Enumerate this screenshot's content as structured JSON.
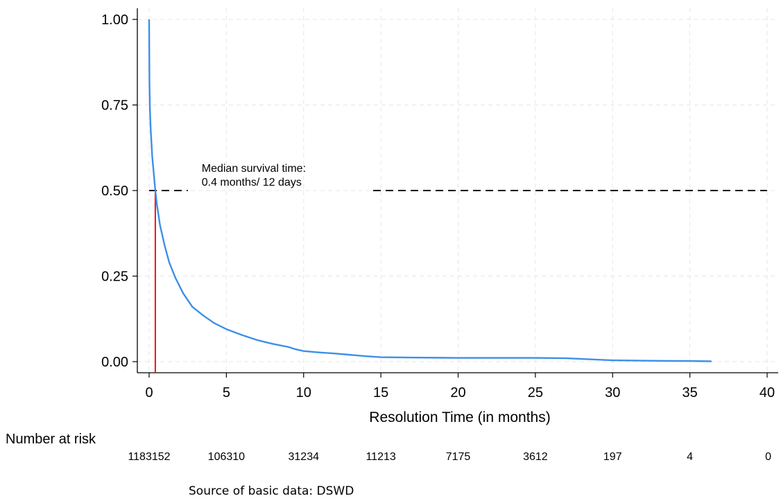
{
  "chart_data": {
    "type": "line",
    "title": "",
    "xlabel": "Resolution Time (in months)",
    "ylabel": "",
    "xlim": [
      0,
      40
    ],
    "ylim": [
      0,
      1
    ],
    "x_ticks": [
      0,
      5,
      10,
      15,
      20,
      25,
      30,
      35,
      40
    ],
    "x_tick_labels": [
      "0",
      "5",
      "10",
      "15",
      "20",
      "25",
      "30",
      "35",
      "40"
    ],
    "y_ticks": [
      0,
      0.25,
      0.5,
      0.75,
      1.0
    ],
    "y_tick_labels": [
      "0.00",
      "0.25",
      "0.50",
      "0.75",
      "1.00"
    ],
    "grid": true,
    "series": [
      {
        "color": "#3d8fe8",
        "x": [
          0,
          0.02,
          0.05,
          0.1,
          0.2,
          0.3,
          0.4,
          0.5,
          0.7,
          1.0,
          1.3,
          1.7,
          2.2,
          2.8,
          3.5,
          4.2,
          5.0,
          6.0,
          7.0,
          8.0,
          9.0,
          9.5,
          10.0,
          11.0,
          12.0,
          13.0,
          14.0,
          15.0,
          17.0,
          20.0,
          23.0,
          25.0,
          27.0,
          28.0,
          29.0,
          30.0,
          32.0,
          34.0,
          35.0,
          36.4
        ],
        "values": [
          1.0,
          0.82,
          0.74,
          0.68,
          0.6,
          0.55,
          0.5,
          0.46,
          0.4,
          0.34,
          0.29,
          0.245,
          0.2,
          0.16,
          0.135,
          0.113,
          0.095,
          0.078,
          0.063,
          0.052,
          0.043,
          0.036,
          0.031,
          0.027,
          0.024,
          0.02,
          0.016,
          0.013,
          0.012,
          0.011,
          0.011,
          0.011,
          0.01,
          0.008,
          0.006,
          0.004,
          0.003,
          0.002,
          0.002,
          0.001
        ]
      }
    ],
    "reference_lines": {
      "median_time": 0.4,
      "median_survival": 0.5,
      "vertical_color": "#e8141c",
      "horizontal_color": "#000000"
    },
    "annotation": {
      "line1": "Median survival time:",
      "line2": "0.4 months/ 12 days",
      "x": 3.4,
      "y": 0.5
    },
    "risk_table": {
      "title": "Number at risk",
      "times": [
        0,
        5,
        10,
        15,
        20,
        25,
        30,
        35,
        40
      ],
      "counts": [
        "1183152",
        "106310",
        "31234",
        "11213",
        "7175",
        "3612",
        "197",
        "4",
        "0"
      ]
    },
    "source_note": "Source of basic data: DSWD"
  }
}
